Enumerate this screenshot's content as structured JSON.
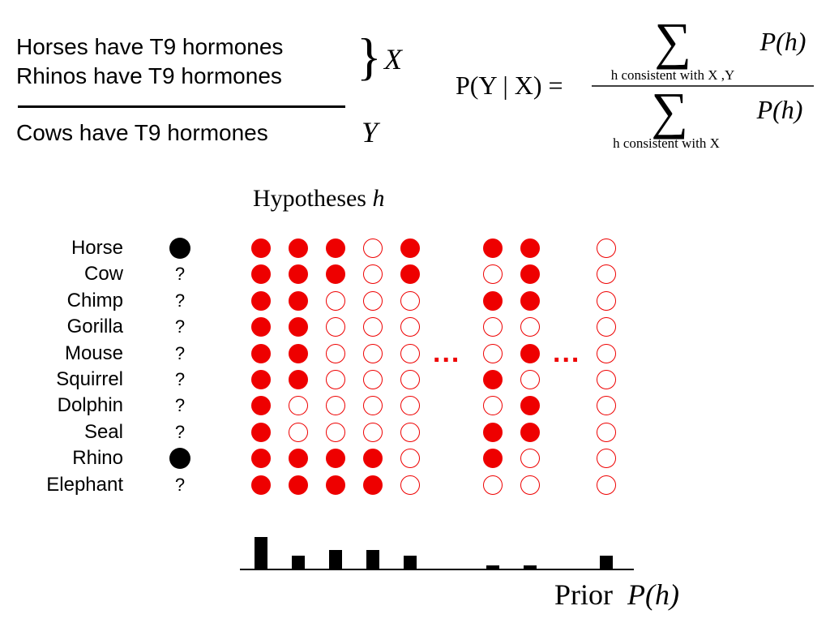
{
  "premises": [
    "Horses have T9 hormones",
    "Rhinos have T9 hormones"
  ],
  "conclusion": "Cows have T9 hormones",
  "premise_var": "X",
  "conclusion_var": "Y",
  "formula": {
    "lhs": "P(Y | X) =",
    "numerator_sum_label": "h consistent with X ,Y",
    "denominator_sum_label": "h consistent with X",
    "term": "P(h)"
  },
  "hypotheses_title": "Hypotheses",
  "hypotheses_symbol": "h",
  "animals": [
    {
      "name": "Horse",
      "observed": true
    },
    {
      "name": "Cow",
      "observed": false
    },
    {
      "name": "Chimp",
      "observed": false
    },
    {
      "name": "Gorilla",
      "observed": false
    },
    {
      "name": "Mouse",
      "observed": false
    },
    {
      "name": "Squirrel",
      "observed": false
    },
    {
      "name": "Dolphin",
      "observed": false
    },
    {
      "name": "Seal",
      "observed": false
    },
    {
      "name": "Rhino",
      "observed": true
    },
    {
      "name": "Elephant",
      "observed": false
    }
  ],
  "unknown_mark": "?",
  "ellipsis": "...",
  "hypotheses": [
    {
      "members": [
        1,
        1,
        1,
        1,
        1,
        1,
        1,
        1,
        1,
        1
      ],
      "prior": 1.0
    },
    {
      "members": [
        1,
        1,
        1,
        1,
        1,
        1,
        0,
        0,
        1,
        1
      ],
      "prior": 0.42
    },
    {
      "members": [
        1,
        1,
        0,
        0,
        0,
        0,
        0,
        0,
        1,
        1
      ],
      "prior": 0.6
    },
    {
      "members": [
        0,
        0,
        0,
        0,
        0,
        0,
        0,
        0,
        1,
        1
      ],
      "prior": 0.6
    },
    {
      "members": [
        1,
        1,
        0,
        0,
        0,
        0,
        0,
        0,
        0,
        0
      ],
      "prior": 0.42
    },
    {
      "members": [
        1,
        0,
        1,
        0,
        0,
        1,
        0,
        1,
        1,
        0
      ],
      "prior": 0.1
    },
    {
      "members": [
        1,
        1,
        1,
        0,
        1,
        0,
        1,
        1,
        0,
        0
      ],
      "prior": 0.1
    },
    {
      "members": [
        0,
        0,
        0,
        0,
        0,
        0,
        0,
        0,
        0,
        0
      ],
      "prior": 0.42
    }
  ],
  "prior_label": "Prior",
  "prior_symbol": "P(h)",
  "colors": {
    "member": "#ee0000",
    "observed": "#000000"
  }
}
